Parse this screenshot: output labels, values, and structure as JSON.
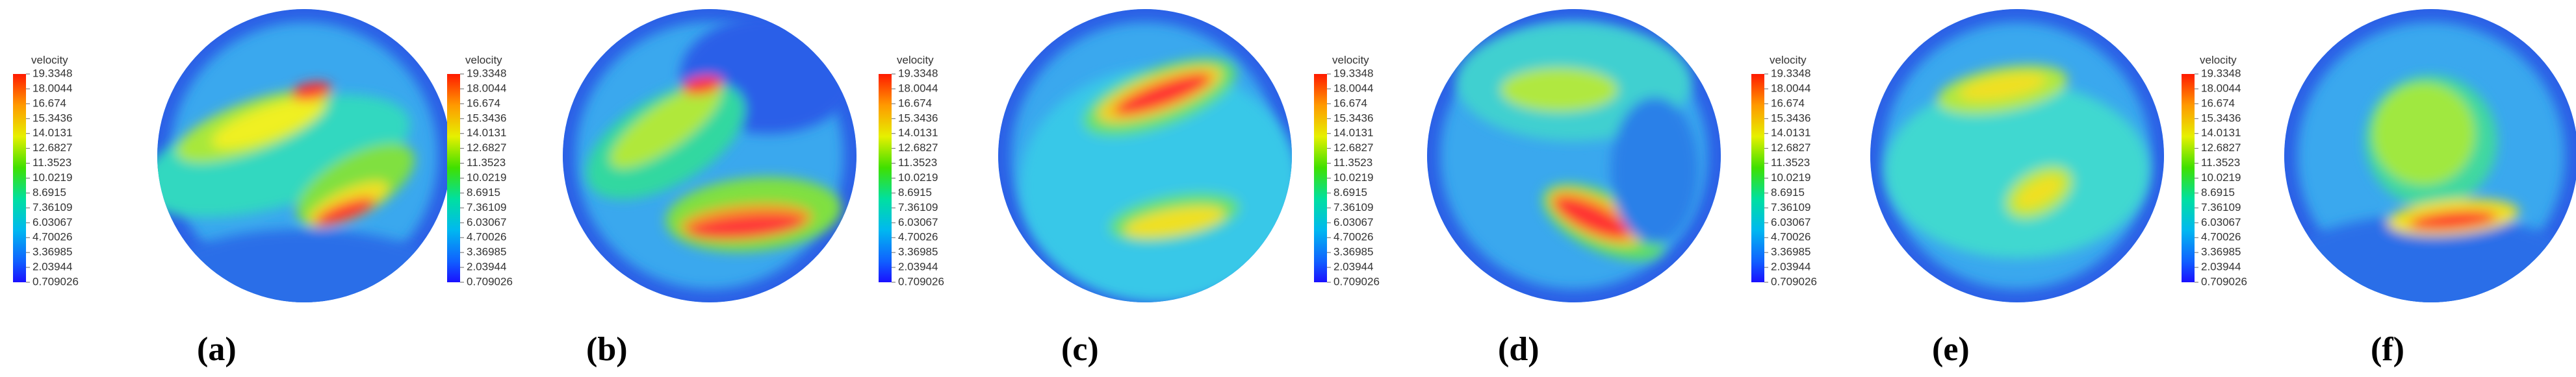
{
  "legend": {
    "title": "velocity",
    "ticks": [
      19.3348,
      18.0044,
      16.674,
      15.3436,
      14.0131,
      12.6827,
      11.3523,
      10.0219,
      8.6915,
      7.36109,
      6.03067,
      4.70026,
      3.36985,
      2.03944,
      0.709026
    ]
  },
  "panels": [
    {
      "caption": "(a)"
    },
    {
      "caption": "(b)"
    },
    {
      "caption": "(c)"
    },
    {
      "caption": "(d)"
    },
    {
      "caption": "(e)"
    },
    {
      "caption": "(f)"
    }
  ]
}
